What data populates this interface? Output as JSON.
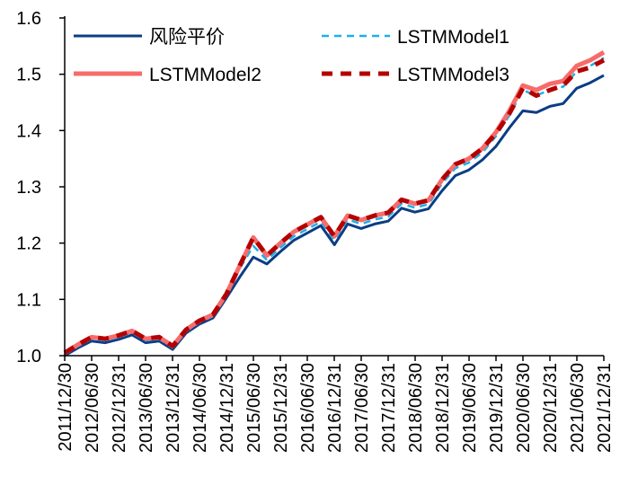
{
  "chart_data": {
    "type": "line",
    "title": "",
    "xlabel": "",
    "ylabel": "",
    "ylim": [
      1.0,
      1.6
    ],
    "yticks": [
      "1.0",
      "1.1",
      "1.2",
      "1.3",
      "1.4",
      "1.5",
      "1.6"
    ],
    "xtick_labels": [
      "2011/12/30",
      "2012/06/30",
      "2012/12/31",
      "2013/06/30",
      "2013/12/31",
      "2014/06/30",
      "2014/12/31",
      "2015/06/30",
      "2015/12/31",
      "2016/06/30",
      "2016/12/31",
      "2017/06/30",
      "2017/12/31",
      "2018/06/30",
      "2018/12/31",
      "2019/06/30",
      "2019/12/31",
      "2020/06/30",
      "2020/12/31",
      "2021/06/30",
      "2021/12/31"
    ],
    "xlim": [
      "2011/12/30",
      "2021/12/31"
    ],
    "grid": false,
    "legend_placement": "top",
    "x": [
      "2011/12/30",
      "2012/03/31",
      "2012/06/30",
      "2012/09/30",
      "2012/12/31",
      "2013/03/31",
      "2013/06/30",
      "2013/09/30",
      "2013/12/31",
      "2014/03/31",
      "2014/06/30",
      "2014/09/30",
      "2014/12/31",
      "2015/03/31",
      "2015/06/30",
      "2015/09/30",
      "2015/12/31",
      "2016/03/31",
      "2016/06/30",
      "2016/09/30",
      "2016/12/31",
      "2017/03/31",
      "2017/06/30",
      "2017/09/30",
      "2017/12/31",
      "2018/03/31",
      "2018/06/30",
      "2018/09/30",
      "2018/12/31",
      "2019/03/31",
      "2019/06/30",
      "2019/09/30",
      "2019/12/31",
      "2020/03/31",
      "2020/06/30",
      "2020/09/30",
      "2020/12/31",
      "2021/03/31",
      "2021/06/30",
      "2021/09/30",
      "2021/12/31"
    ],
    "series": [
      {
        "name": "风险平价",
        "color": "#0b3d84",
        "style": "solid",
        "values": [
          1.0,
          1.014,
          1.026,
          1.023,
          1.029,
          1.037,
          1.023,
          1.026,
          1.011,
          1.04,
          1.056,
          1.067,
          1.103,
          1.14,
          1.175,
          1.163,
          1.185,
          1.205,
          1.218,
          1.231,
          1.197,
          1.234,
          1.226,
          1.234,
          1.239,
          1.262,
          1.255,
          1.261,
          1.293,
          1.32,
          1.33,
          1.348,
          1.372,
          1.405,
          1.435,
          1.432,
          1.443,
          1.448,
          1.475,
          1.485,
          1.498
        ]
      },
      {
        "name": "LSTMModel1",
        "color": "#1ab0ea",
        "style": "dashed",
        "values": [
          1.002,
          1.017,
          1.03,
          1.027,
          1.033,
          1.041,
          1.027,
          1.03,
          1.014,
          1.043,
          1.059,
          1.07,
          1.107,
          1.155,
          1.195,
          1.17,
          1.192,
          1.212,
          1.225,
          1.238,
          1.205,
          1.242,
          1.234,
          1.242,
          1.247,
          1.27,
          1.263,
          1.269,
          1.306,
          1.333,
          1.343,
          1.361,
          1.39,
          1.427,
          1.472,
          1.462,
          1.473,
          1.478,
          1.505,
          1.515,
          1.529
        ]
      },
      {
        "name": "LSTMModel2",
        "color": "#f76b6b",
        "style": "solid-thick",
        "values": [
          1.005,
          1.02,
          1.033,
          1.03,
          1.036,
          1.044,
          1.03,
          1.033,
          1.017,
          1.046,
          1.062,
          1.073,
          1.11,
          1.16,
          1.21,
          1.178,
          1.2,
          1.22,
          1.233,
          1.246,
          1.212,
          1.249,
          1.241,
          1.249,
          1.254,
          1.277,
          1.27,
          1.276,
          1.313,
          1.34,
          1.35,
          1.368,
          1.397,
          1.435,
          1.48,
          1.472,
          1.483,
          1.488,
          1.515,
          1.525,
          1.539
        ]
      },
      {
        "name": "LSTMModel3",
        "color": "#b40000",
        "style": "dashed-thick",
        "values": [
          1.005,
          1.02,
          1.033,
          1.03,
          1.036,
          1.044,
          1.03,
          1.033,
          1.017,
          1.046,
          1.062,
          1.073,
          1.11,
          1.16,
          1.21,
          1.178,
          1.2,
          1.22,
          1.233,
          1.246,
          1.212,
          1.249,
          1.241,
          1.249,
          1.254,
          1.277,
          1.27,
          1.276,
          1.313,
          1.34,
          1.35,
          1.368,
          1.395,
          1.43,
          1.475,
          1.462,
          1.472,
          1.48,
          1.505,
          1.512,
          1.525
        ]
      }
    ]
  }
}
